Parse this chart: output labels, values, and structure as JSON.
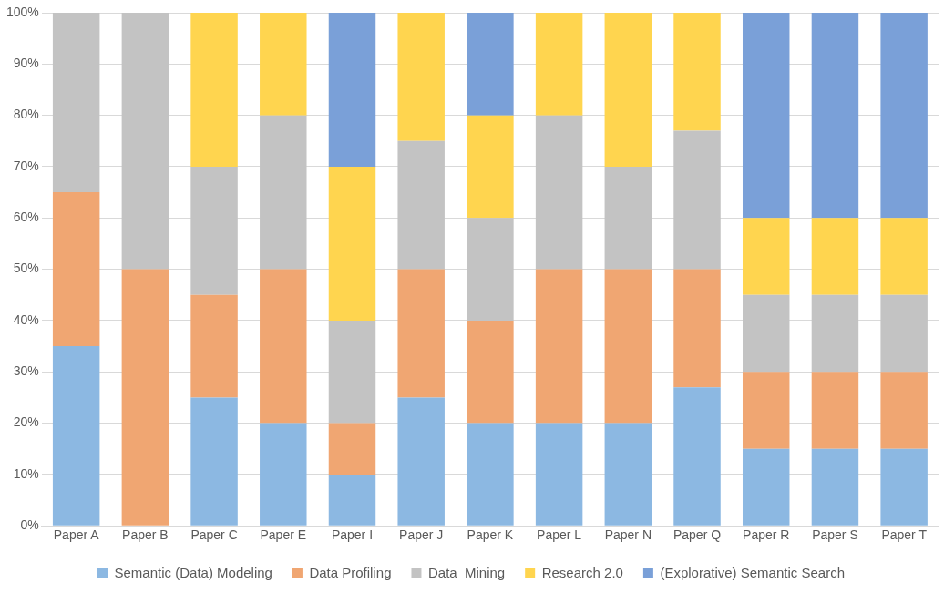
{
  "chart_data": {
    "type": "bar",
    "stacked": true,
    "categories": [
      "Paper A",
      "Paper B",
      "Paper C",
      "Paper E",
      "Paper I",
      "Paper J",
      "Paper K",
      "Paper L",
      "Paper N",
      "Paper Q",
      "Paper R",
      "Paper S",
      "Paper T"
    ],
    "series": [
      {
        "name": "Semantic (Data) Modeling",
        "color": "#8cb8e2",
        "values": [
          35,
          0,
          25,
          20,
          10,
          25,
          20,
          20,
          20,
          27,
          15,
          15,
          15
        ]
      },
      {
        "name": "Data Profiling",
        "color": "#f0a672",
        "values": [
          30,
          50,
          20,
          30,
          10,
          25,
          20,
          30,
          30,
          23,
          15,
          15,
          15
        ]
      },
      {
        "name": "Data  Mining",
        "color": "#c3c3c3",
        "values": [
          35,
          50,
          25,
          30,
          20,
          25,
          20,
          30,
          20,
          27,
          15,
          15,
          15
        ]
      },
      {
        "name": "Research 2.0",
        "color": "#ffd54f",
        "values": [
          0,
          0,
          30,
          20,
          30,
          25,
          20,
          20,
          30,
          23,
          15,
          15,
          15
        ]
      },
      {
        "name": "(Explorative) Semantic Search",
        "color": "#7aa0d8",
        "values": [
          0,
          0,
          0,
          0,
          30,
          0,
          20,
          0,
          0,
          0,
          40,
          40,
          40
        ]
      }
    ],
    "ylim": [
      0,
      100
    ],
    "yticks": [
      {
        "value": 0,
        "label": "0%"
      },
      {
        "value": 10,
        "label": "10%"
      },
      {
        "value": 20,
        "label": "20%"
      },
      {
        "value": 30,
        "label": "30%"
      },
      {
        "value": 40,
        "label": "40%"
      },
      {
        "value": 50,
        "label": "50%"
      },
      {
        "value": 60,
        "label": "60%"
      },
      {
        "value": 70,
        "label": "70%"
      },
      {
        "value": 80,
        "label": "80%"
      },
      {
        "value": 90,
        "label": "90%"
      },
      {
        "value": 100,
        "label": "100%"
      }
    ],
    "grid": "y",
    "legend": "bottom"
  }
}
